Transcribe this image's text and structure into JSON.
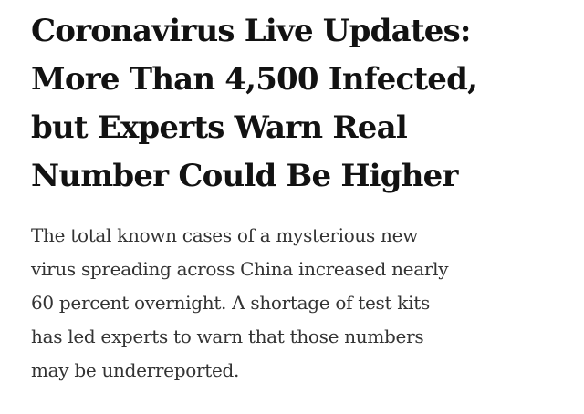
{
  "article": {
    "headline_lines": [
      "Coronavirus Live Updates:",
      "More Than 4,500 Infected,",
      "but Experts Warn Real",
      "Number Could Be Higher"
    ],
    "summary_lines": [
      "The total known cases of a mysterious new",
      "virus spreading across China increased nearly",
      "60 percent overnight. A shortage of test kits",
      "has led experts to warn that those numbers",
      "may be underreported."
    ]
  }
}
